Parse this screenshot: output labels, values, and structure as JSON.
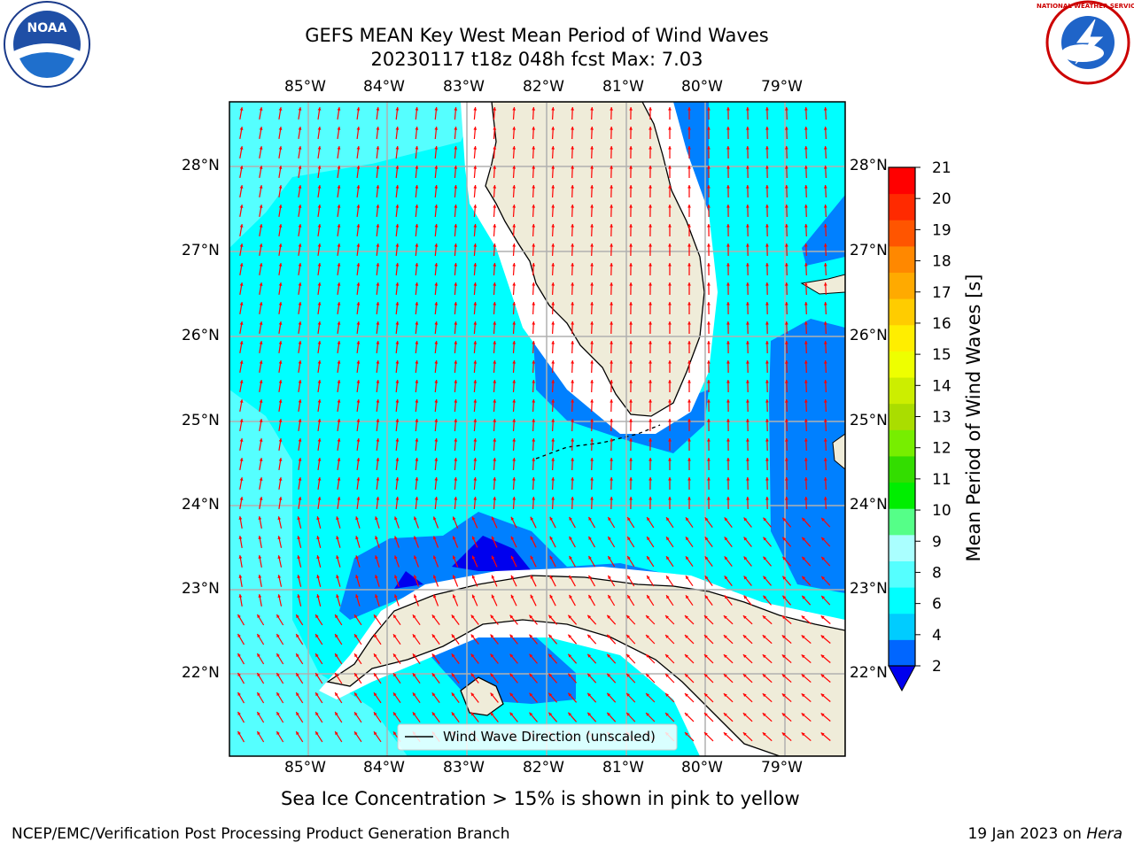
{
  "title_line1": "GEFS MEAN Key West Mean Period of Wind Waves",
  "title_line2": "20230117 t18z 048h fcst   Max: 7.03",
  "logos": {
    "left": {
      "name": "noaa-logo",
      "text": "NOAA"
    },
    "right": {
      "name": "nws-logo",
      "text": "NATIONAL WEATHER SERVICE"
    }
  },
  "lon_labels": [
    "85°W",
    "84°W",
    "83°W",
    "82°W",
    "81°W",
    "80°W",
    "79°W"
  ],
  "lat_labels": [
    "28°N",
    "27°N",
    "26°N",
    "25°N",
    "24°N",
    "23°N",
    "22°N"
  ],
  "legend_label": "Wind Wave Direction (unscaled)",
  "colorbar": {
    "label": "Mean Period of Wind Waves [s]",
    "ticks": [
      "2",
      "4",
      "6",
      "8",
      "9",
      "10",
      "11",
      "12",
      "13",
      "14",
      "15",
      "16",
      "17",
      "18",
      "19",
      "20",
      "21"
    ],
    "colors": [
      "#0066ff",
      "#00ccff",
      "#00ffff",
      "#55ffff",
      "#aaffff",
      "#55ff88",
      "#00ee00",
      "#33dd00",
      "#77ee00",
      "#aadd00",
      "#ccee00",
      "#eeff00",
      "#ffee00",
      "#ffcc00",
      "#ffaa00",
      "#ff8800",
      "#ff5500",
      "#ff2a00",
      "#ff0000"
    ],
    "under_color": "#0000ee"
  },
  "colors": {
    "land": "#efecd9",
    "sea_base": "#00ffff",
    "sea_light": "#55ffff",
    "sea_mid": "#0080ff",
    "sea_dark": "#0000ee",
    "arrow": "#ff0000",
    "grid": "#b0b0b0"
  },
  "notes": {
    "sea_ice": "Sea Ice Concentration > 15% is shown in pink to yellow",
    "footer_left": "NCEP/EMC/Verification Post Processing Product Generation Branch",
    "footer_right_prefix": "19 Jan 2023 on ",
    "footer_right_host": "Hera"
  }
}
